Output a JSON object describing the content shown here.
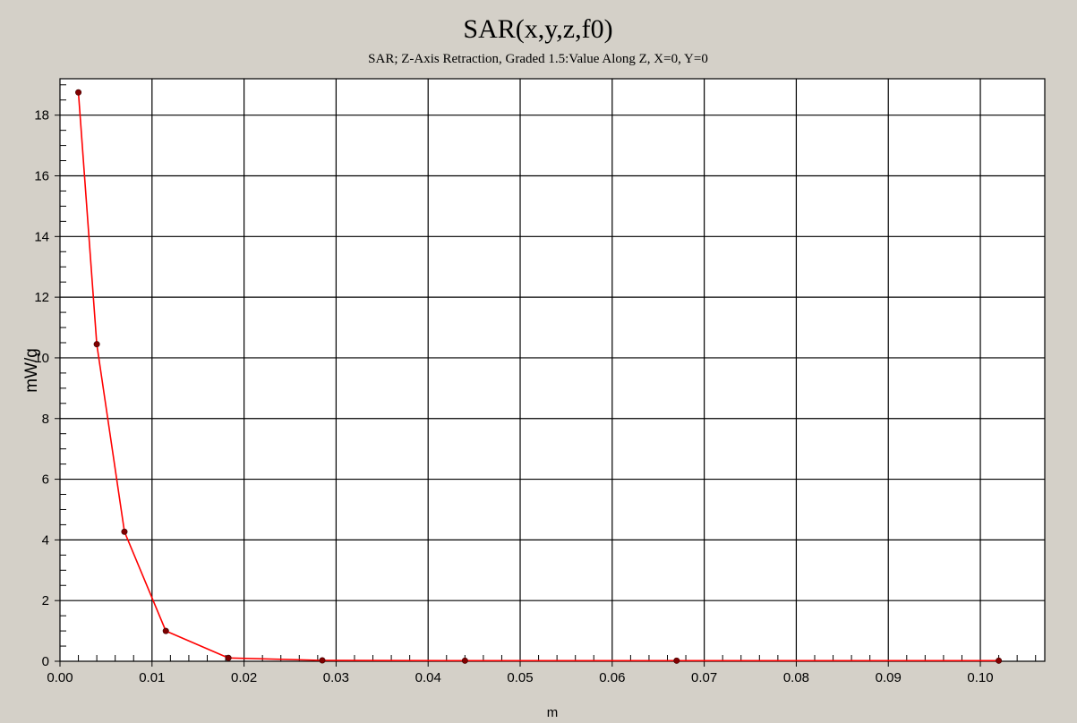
{
  "chart_data": {
    "type": "line",
    "title": "SAR(x,y,z,f0)",
    "subtitle": "SAR; Z-Axis Retraction, Graded 1.5:Value Along Z, X=0, Y=0",
    "xlabel": "m",
    "ylabel": "mW/g",
    "xlim": [
      0,
      0.107
    ],
    "ylim": [
      0,
      19.2
    ],
    "x_ticks": [
      0.0,
      0.01,
      0.02,
      0.03,
      0.04,
      0.05,
      0.06,
      0.07,
      0.08,
      0.09,
      0.1
    ],
    "x_tick_labels": [
      "0.00",
      "0.01",
      "0.02",
      "0.03",
      "0.04",
      "0.05",
      "0.06",
      "0.07",
      "0.08",
      "0.09",
      "0.10"
    ],
    "y_ticks": [
      0,
      2,
      4,
      6,
      8,
      10,
      12,
      14,
      16,
      18
    ],
    "y_tick_labels": [
      "0",
      "2",
      "4",
      "6",
      "8",
      "10",
      "12",
      "14",
      "16",
      "18"
    ],
    "grid": true,
    "series": [
      {
        "color": "#ff0000",
        "marker_color": "#800000",
        "x": [
          0.002,
          0.004,
          0.007,
          0.0115,
          0.0183,
          0.0285,
          0.044,
          0.067,
          0.102
        ],
        "y": [
          18.75,
          10.45,
          4.27,
          1.0,
          0.11,
          0.03,
          0.02,
          0.02,
          0.02
        ]
      }
    ]
  }
}
